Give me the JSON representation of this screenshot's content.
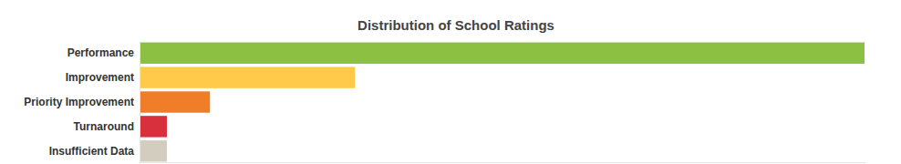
{
  "chart_data": {
    "type": "bar",
    "title": "Distribution of School Ratings",
    "orientation": "horizontal",
    "categories": [
      "Performance",
      "Improvement",
      "Priority Improvement",
      "Turnaround",
      "Insufficient Data"
    ],
    "values": [
      106,
      31.5,
      10.3,
      4,
      4
    ],
    "colors": [
      "#8bc043",
      "#ffc94a",
      "#f07d27",
      "#d9303e",
      "#d3cdc0"
    ],
    "xlim": [
      0,
      106
    ],
    "xticks": [],
    "tick_labels": "y",
    "grid": false
  }
}
